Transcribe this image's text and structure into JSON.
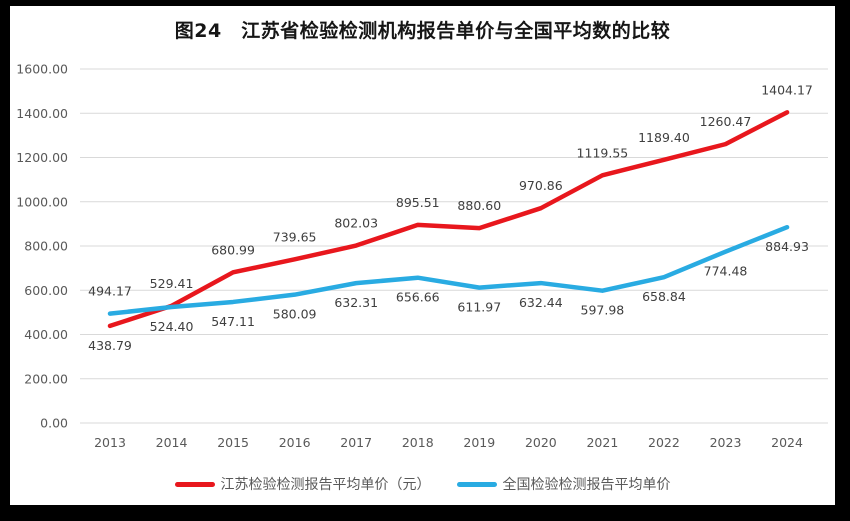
{
  "frame": {
    "title": "图24　江苏省检验检测机构报告单价与全国平均数的比较"
  },
  "chart_data": {
    "type": "line",
    "title": "图24　江苏省检验检测机构报告单价与全国平均数的比较",
    "categories": [
      "2013",
      "2014",
      "2015",
      "2016",
      "2017",
      "2018",
      "2019",
      "2020",
      "2021",
      "2022",
      "2023",
      "2024"
    ],
    "series": [
      {
        "name": "江苏检验检测报告平均单价（元）",
        "color": "#e8171d",
        "values": [
          438.79,
          529.41,
          680.99,
          739.65,
          802.03,
          895.51,
          880.6,
          970.86,
          1119.55,
          1189.4,
          1260.47,
          1404.17
        ],
        "labels": [
          "438.79",
          "529.41",
          "680.99",
          "739.65",
          "802.03",
          "895.51",
          "880.60",
          "970.86",
          "1119.55",
          "1189.40",
          "1260.47",
          "1404.17"
        ],
        "label_positions": [
          "below",
          "above",
          "above",
          "above",
          "above",
          "above",
          "above",
          "above",
          "above",
          "above",
          "above",
          "above"
        ]
      },
      {
        "name": "全国检验检测报告平均单价",
        "color": "#29abe2",
        "values": [
          494.17,
          524.4,
          547.11,
          580.09,
          632.31,
          656.66,
          611.97,
          632.44,
          597.98,
          658.84,
          774.48,
          884.93
        ],
        "labels": [
          "494.17",
          "524.40",
          "547.11",
          "580.09",
          "632.31",
          "656.66",
          "611.97",
          "632.44",
          "597.98",
          "658.84",
          "774.48",
          "884.93"
        ],
        "label_positions": [
          "above",
          "below",
          "below",
          "below",
          "below",
          "below",
          "below",
          "below",
          "below",
          "below",
          "below",
          "below"
        ]
      }
    ],
    "ylim": [
      0,
      1600
    ],
    "y_ticks": [
      "0.00",
      "200.00",
      "400.00",
      "600.00",
      "800.00",
      "1000.00",
      "1200.00",
      "1400.00",
      "1600.00"
    ],
    "xlabel": "",
    "ylabel": "",
    "grid": "horizontal",
    "legend_position": "bottom"
  },
  "colors": {
    "gridline": "#d9d9d9",
    "axis_text": "#595959",
    "label_text": "#3f3f3f",
    "frame_bg": "#ffffff",
    "outer_bg": "#000000"
  }
}
